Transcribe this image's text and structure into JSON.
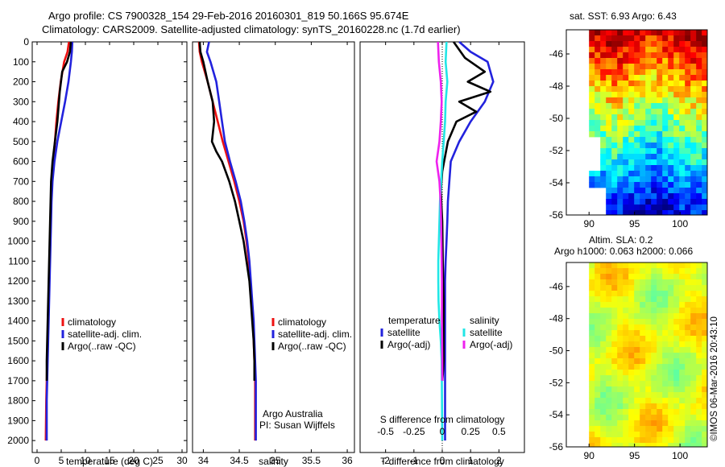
{
  "header": {
    "line1": "Argo profile: CS 7900328_154 29-Feb-2016 20160301_819 50.166S 95.674E",
    "line2": "Climatology: CARS2009. Satellite-adjusted climatology: synTS_20160228.nc (1.7d earlier)"
  },
  "credit": "©IMOS 06-Mar-2016 20:43:10",
  "colors": {
    "climatology": "#ee1111",
    "satellite": "#2222dd",
    "argo": "#000000",
    "salinity_satellite": "#22e6e6",
    "salinity_argo": "#ee22ee"
  },
  "chart_data": [
    {
      "type": "line",
      "name": "temperature-profile",
      "xlabel": "temperature (deg C)",
      "ylabel": "",
      "xlim": [
        -1,
        31
      ],
      "ylim": [
        2060,
        0
      ],
      "xticks": [
        0,
        5,
        10,
        15,
        20,
        25,
        30
      ],
      "yticks": [
        0,
        100,
        200,
        300,
        400,
        500,
        600,
        700,
        800,
        900,
        1000,
        1100,
        1200,
        1300,
        1400,
        1500,
        1600,
        1700,
        1800,
        1900,
        2000
      ],
      "legend": [
        "climatology",
        "satellite-adj. clim.",
        "Argo(..raw -QC)"
      ],
      "series": [
        {
          "name": "climatology",
          "color": "#ee1111",
          "x": [
            6.6,
            6.3,
            5.6,
            4.9,
            4.4,
            4.0,
            3.7,
            3.4,
            3.1,
            2.9,
            2.8,
            2.7,
            2.6,
            2.5,
            2.4,
            2.3,
            2.2,
            2.1,
            2.0,
            1.9,
            1.8
          ],
          "y": [
            0,
            50,
            100,
            200,
            300,
            400,
            500,
            600,
            700,
            800,
            900,
            1000,
            1100,
            1200,
            1300,
            1400,
            1500,
            1600,
            1700,
            1800,
            2000
          ]
        },
        {
          "name": "satellite-adj. clim.",
          "color": "#2222dd",
          "x": [
            7.3,
            7.2,
            7.0,
            6.5,
            5.8,
            5.0,
            4.2,
            3.6,
            3.2,
            3.0,
            2.9,
            2.8,
            2.7,
            2.6,
            2.5,
            2.4,
            2.3,
            2.2,
            2.1,
            2.0,
            2.0
          ],
          "y": [
            0,
            50,
            100,
            200,
            300,
            400,
            500,
            600,
            700,
            800,
            900,
            1000,
            1100,
            1200,
            1300,
            1400,
            1500,
            1600,
            1700,
            1800,
            2000
          ]
        },
        {
          "name": "Argo(..raw -QC)",
          "color": "#000000",
          "x": [
            7.0,
            6.8,
            6.2,
            5.2,
            4.7,
            4.2,
            3.7,
            3.2,
            2.9,
            2.8,
            2.7,
            2.6,
            2.5,
            2.4,
            2.3,
            2.2,
            2.1,
            2.0,
            2.0
          ],
          "y": [
            0,
            50,
            100,
            150,
            250,
            400,
            500,
            600,
            700,
            800,
            900,
            1000,
            1100,
            1200,
            1300,
            1400,
            1500,
            1600,
            1700
          ]
        }
      ]
    },
    {
      "type": "line",
      "name": "salinity-profile",
      "xlabel": "salinity",
      "ylabel": "",
      "xlim": [
        33.85,
        36.1
      ],
      "ylim": [
        2060,
        0
      ],
      "xticks": [
        34,
        34.5,
        35,
        35.5,
        36
      ],
      "legend": [
        "climatology",
        "satellite-adj. clim.",
        "Argo(..raw -QC)"
      ],
      "annotations": [
        "Argo Australia",
        "PI: Susan Wijffels"
      ],
      "series": [
        {
          "name": "climatology",
          "color": "#ee1111",
          "x": [
            33.94,
            33.95,
            33.98,
            34.06,
            34.13,
            34.2,
            34.27,
            34.35,
            34.43,
            34.5,
            34.56,
            34.6,
            34.63,
            34.65,
            34.67,
            34.69,
            34.7,
            34.71,
            34.72,
            34.72,
            34.72
          ],
          "y": [
            0,
            50,
            100,
            200,
            300,
            400,
            500,
            600,
            700,
            800,
            900,
            1000,
            1100,
            1200,
            1300,
            1400,
            1500,
            1600,
            1700,
            1800,
            2000
          ]
        },
        {
          "name": "satellite-adj. clim.",
          "color": "#2222dd",
          "x": [
            34.08,
            34.05,
            34.1,
            34.18,
            34.22,
            34.26,
            34.3,
            34.37,
            34.45,
            34.52,
            34.57,
            34.61,
            34.64,
            34.66,
            34.68,
            34.7,
            34.71,
            34.72,
            34.73,
            34.73,
            34.73
          ],
          "y": [
            0,
            50,
            100,
            200,
            300,
            400,
            500,
            600,
            700,
            800,
            900,
            1000,
            1100,
            1200,
            1300,
            1400,
            1500,
            1600,
            1700,
            1800,
            2000
          ]
        },
        {
          "name": "Argo(..raw -QC)",
          "color": "#000000",
          "x": [
            33.95,
            33.96,
            34.0,
            34.06,
            34.13,
            34.15,
            34.12,
            34.18,
            34.26,
            34.36,
            34.44,
            34.5,
            34.56,
            34.6,
            34.64,
            34.66,
            34.68,
            34.7,
            34.71,
            34.71
          ],
          "y": [
            0,
            50,
            100,
            200,
            300,
            400,
            500,
            550,
            600,
            700,
            800,
            900,
            1000,
            1100,
            1200,
            1300,
            1400,
            1500,
            1600,
            1700
          ]
        }
      ]
    },
    {
      "type": "line",
      "name": "difference-profile",
      "xlabel": "T difference from climatology",
      "xlabel_top": "S difference from climatology",
      "xlim": [
        -2.9,
        2.9
      ],
      "ylim": [
        2060,
        0
      ],
      "xticks": [
        -2,
        -1,
        0,
        1,
        2
      ],
      "s_ticks": [
        -0.5,
        -0.25,
        0,
        0.25,
        0.5
      ],
      "s_tick_labels": [
        "-0.5",
        "-0.25",
        "0",
        "0.25",
        "0.5"
      ],
      "legend_headers": [
        "temperature",
        "salinity"
      ],
      "legend": [
        "satellite",
        "Argo(-adj)",
        "satellite",
        "Argo(-adj)"
      ],
      "series": [
        {
          "name": "temperature satellite",
          "color": "#2222dd",
          "x": [
            0.6,
            1.0,
            1.6,
            1.8,
            1.5,
            1.0,
            0.6,
            0.3,
            0.25,
            0.2,
            0.18,
            0.15,
            0.12,
            0.1,
            0.1,
            0.1,
            0.1,
            0.1,
            0.1,
            0.1
          ],
          "y": [
            0,
            50,
            100,
            200,
            300,
            400,
            500,
            600,
            700,
            800,
            900,
            1000,
            1100,
            1200,
            1300,
            1400,
            1500,
            1600,
            1800,
            2000
          ]
        },
        {
          "name": "temperature Argo(-adj)",
          "color": "#000000",
          "x": [
            0.4,
            0.8,
            1.5,
            0.9,
            1.7,
            0.6,
            1.2,
            0.5,
            0.2,
            0.0,
            -0.05,
            0.0,
            0.02,
            0.05,
            0.05,
            0.05,
            0.03,
            0.0
          ],
          "y": [
            0,
            80,
            150,
            200,
            250,
            300,
            350,
            400,
            500,
            650,
            750,
            900,
            1100,
            1300,
            1500,
            1600,
            1650,
            1700
          ]
        },
        {
          "name": "salinity satellite",
          "color": "#22e6e6",
          "x": [
            0.15,
            0.12,
            0.18,
            0.12,
            0.1,
            0.05,
            0.0,
            -0.04,
            -0.08,
            -0.1,
            -0.12,
            -0.14,
            -0.14,
            -0.13,
            -0.1,
            -0.05,
            -0.02,
            0.0
          ],
          "y": [
            0,
            100,
            200,
            300,
            400,
            500,
            600,
            700,
            800,
            900,
            1000,
            1100,
            1200,
            1300,
            1400,
            1500,
            1600,
            2000
          ]
        },
        {
          "name": "salinity Argo(-adj)",
          "color": "#ee22ee",
          "x": [
            -0.15,
            -0.12,
            -0.05,
            -0.02,
            -0.05,
            -0.1,
            -0.2,
            -0.1,
            -0.06,
            -0.04,
            -0.03,
            -0.02,
            -0.01,
            -0.01,
            0.0,
            0.0
          ],
          "y": [
            0,
            100,
            200,
            300,
            400,
            500,
            600,
            700,
            800,
            900,
            1000,
            1100,
            1200,
            1400,
            1600,
            1700
          ]
        }
      ]
    },
    {
      "type": "heatmap",
      "name": "sst-map",
      "title": "sat. SST: 6.93 Argo: 6.43",
      "xlim": [
        87.5,
        103
      ],
      "ylim": [
        -56,
        -44.5
      ],
      "xticks": [
        90,
        95,
        100
      ],
      "yticks": [
        -46,
        -48,
        -50,
        -52,
        -54,
        -56
      ]
    },
    {
      "type": "heatmap",
      "name": "sla-map",
      "title": "Altim. SLA: 0.2",
      "subtitle": "Argo h1000: 0.063 h2000: 0.066",
      "xlim": [
        87.5,
        103
      ],
      "ylim": [
        -56,
        -44.5
      ],
      "xticks": [
        90,
        95,
        100
      ],
      "yticks": [
        -46,
        -48,
        -50,
        -52,
        -54,
        -56
      ]
    }
  ]
}
